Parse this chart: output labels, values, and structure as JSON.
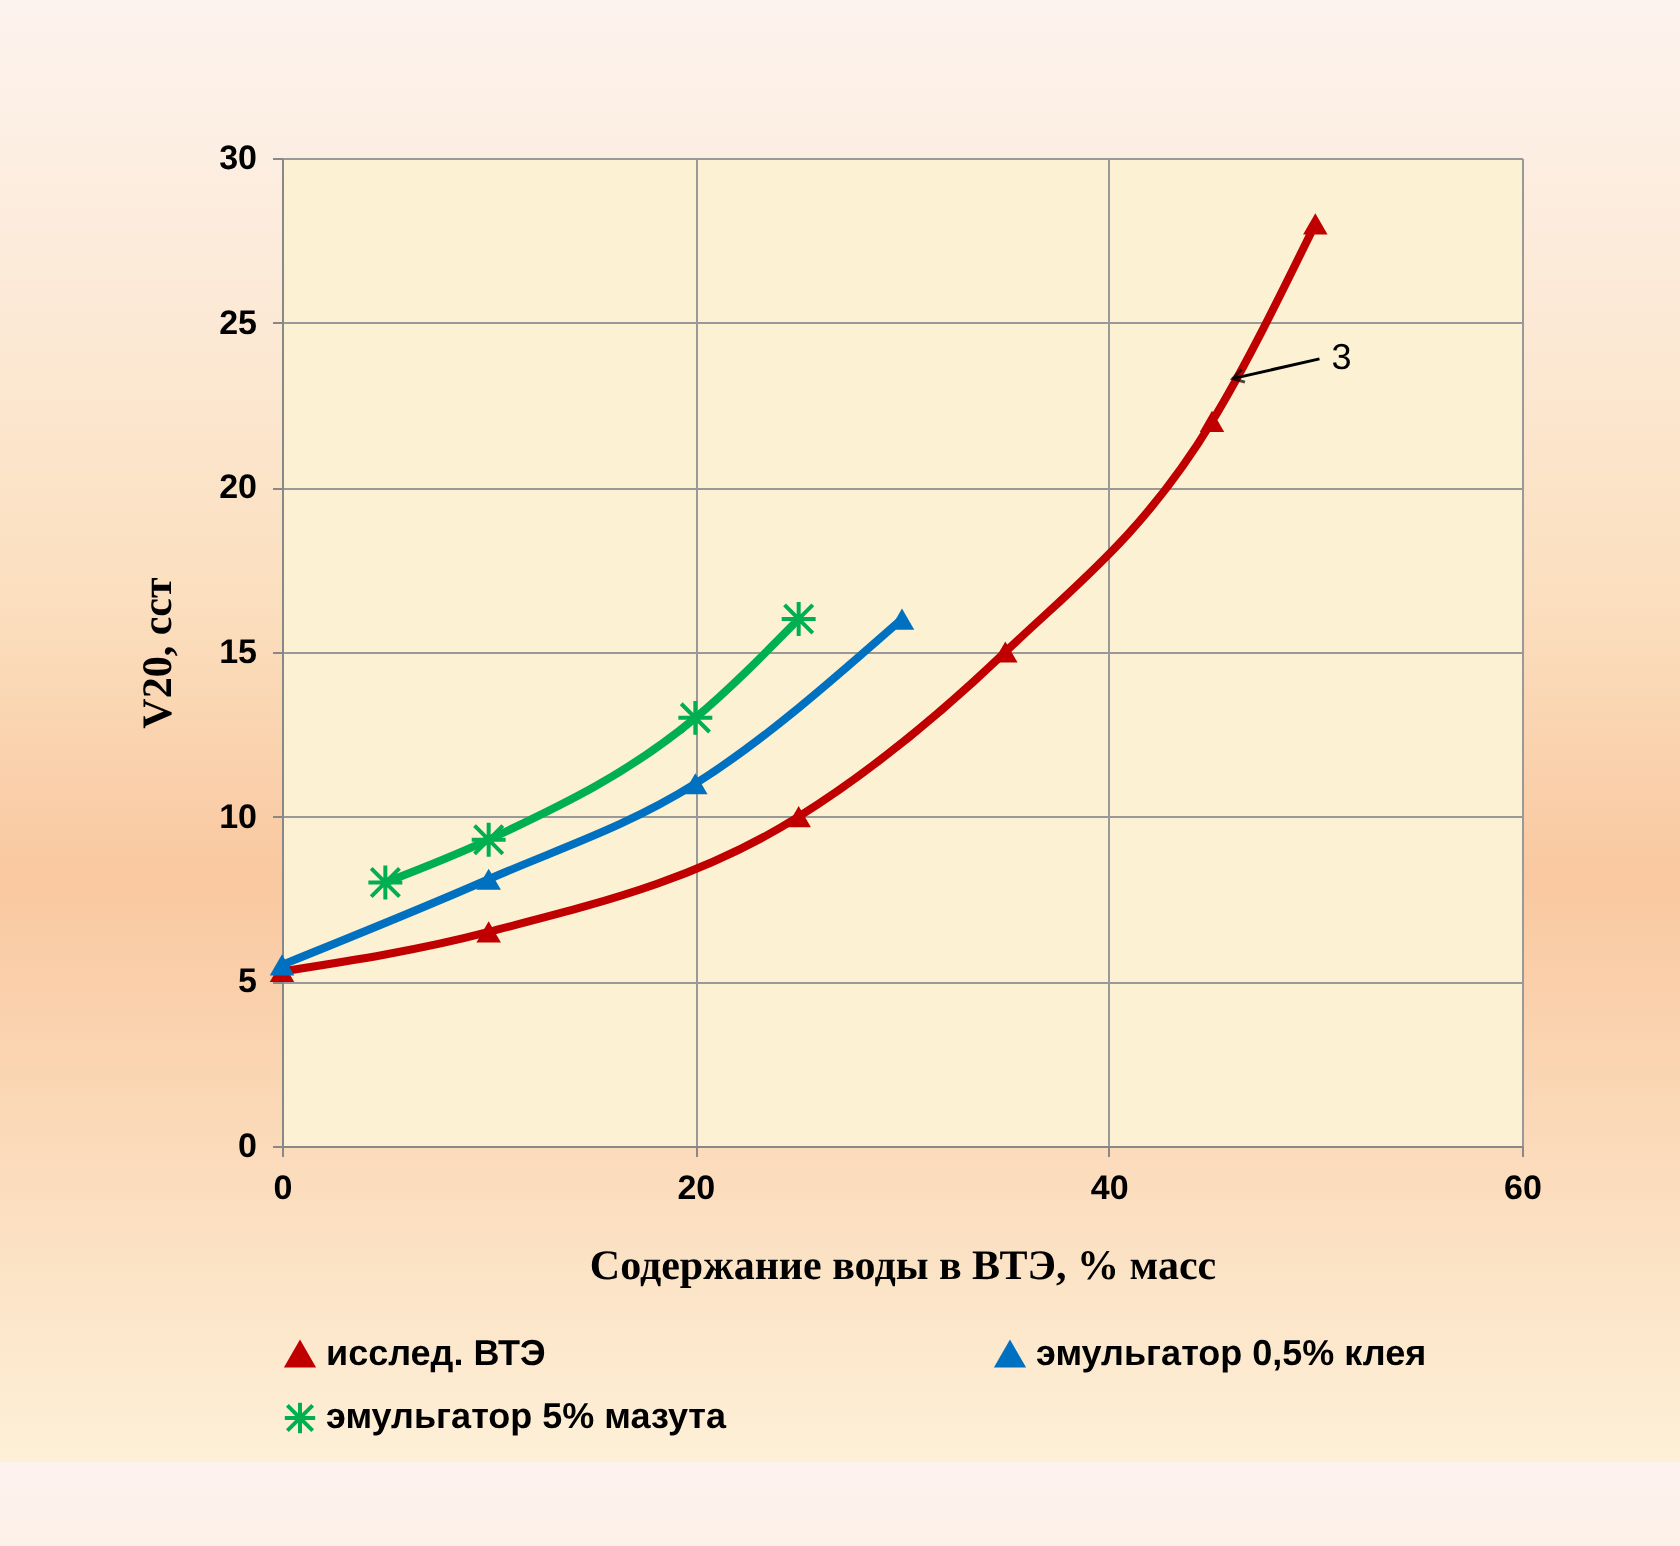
{
  "chart_data": {
    "type": "line",
    "xlabel": "Содержание воды в ВТЭ, % масс",
    "ylabel": "V20, сст",
    "xlim": [
      0,
      60
    ],
    "xticks": [
      0,
      20,
      40,
      60
    ],
    "ylim": [
      0,
      30
    ],
    "yticks": [
      0,
      5,
      10,
      15,
      20,
      25,
      30
    ],
    "grid": true,
    "legend": "bottom",
    "annotations": [
      {
        "text": "3",
        "x": 46,
        "y": 23.3
      }
    ],
    "series": [
      {
        "name": "исслед. ВТЭ",
        "color": "#c00000",
        "marker": "triangle",
        "x": [
          0,
          10,
          25,
          35,
          45,
          50
        ],
        "values": [
          5.3,
          6.5,
          10,
          15,
          22,
          28
        ]
      },
      {
        "name": "эмульгатор 0,5% клея",
        "color": "#0070c0",
        "marker": "triangle",
        "x": [
          0,
          10,
          20,
          30
        ],
        "values": [
          5.5,
          8.1,
          11,
          16
        ]
      },
      {
        "name": "эмульгатор 5% мазута",
        "color": "#00b050",
        "marker": "cross",
        "x": [
          5,
          10,
          20,
          25
        ],
        "values": [
          8,
          9.3,
          13,
          16
        ]
      }
    ]
  }
}
